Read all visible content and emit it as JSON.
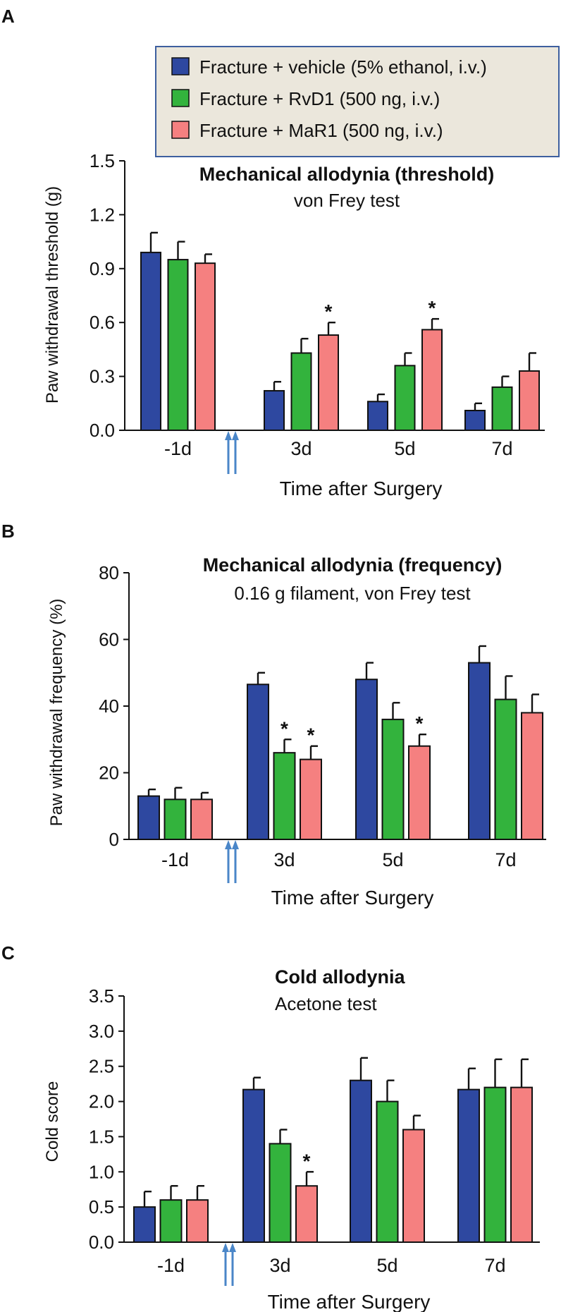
{
  "legend": {
    "items": [
      {
        "label": "Fracture + vehicle (5% ethanol, i.v.)",
        "color": "#2e48a0"
      },
      {
        "label": "Fracture + RvD1 (500 ng, i.v.)",
        "color": "#33b33d"
      },
      {
        "label": "Fracture + MaR1 (500 ng, i.v.)",
        "color": "#f58080"
      }
    ],
    "background": "#ebe7dc",
    "border_color": "#3d5f9f"
  },
  "arrow_color": "#4a86c8",
  "chart_data": [
    {
      "panel": "A",
      "type": "bar",
      "title": "Mechanical allodynia (threshold)",
      "subtitle": "von Frey test",
      "xlabel": "Time after Surgery",
      "ylabel": "Paw withdrawal threshold (g)",
      "ylim": [
        0,
        1.5
      ],
      "yticks": [
        "0.0",
        "0.3",
        "0.6",
        "0.9",
        "1.2",
        "1.5"
      ],
      "categories": [
        "-1d",
        "3d",
        "5d",
        "7d"
      ],
      "series": [
        {
          "name": "Fracture + vehicle (5% ethanol, i.v.)",
          "values": [
            0.99,
            0.22,
            0.16,
            0.11
          ],
          "errors": [
            0.11,
            0.05,
            0.04,
            0.04
          ],
          "stars": [
            false,
            false,
            false,
            false
          ]
        },
        {
          "name": "Fracture + RvD1 (500 ng, i.v.)",
          "values": [
            0.95,
            0.43,
            0.36,
            0.24
          ],
          "errors": [
            0.1,
            0.08,
            0.07,
            0.06
          ],
          "stars": [
            false,
            false,
            false,
            false
          ]
        },
        {
          "name": "Fracture + MaR1 (500 ng, i.v.)",
          "values": [
            0.93,
            0.53,
            0.56,
            0.33
          ],
          "errors": [
            0.05,
            0.07,
            0.06,
            0.1
          ],
          "stars": [
            false,
            true,
            true,
            false
          ]
        }
      ]
    },
    {
      "panel": "B",
      "type": "bar",
      "title": "Mechanical allodynia (frequency)",
      "subtitle": "0.16 g filament, von Frey test",
      "xlabel": "Time after Surgery",
      "ylabel": "Paw withdrawal frequency (%)",
      "ylim": [
        0,
        80
      ],
      "yticks": [
        "0",
        "20",
        "40",
        "60",
        "80"
      ],
      "categories": [
        "-1d",
        "3d",
        "5d",
        "7d"
      ],
      "series": [
        {
          "name": "Fracture + vehicle (5% ethanol, i.v.)",
          "values": [
            13,
            46.5,
            48,
            53
          ],
          "errors": [
            2,
            3.5,
            5,
            5
          ],
          "stars": [
            false,
            false,
            false,
            false
          ]
        },
        {
          "name": "Fracture + RvD1 (500 ng, i.v.)",
          "values": [
            12,
            26,
            36,
            42
          ],
          "errors": [
            3.5,
            4,
            5,
            7
          ],
          "stars": [
            false,
            true,
            false,
            false
          ]
        },
        {
          "name": "Fracture + MaR1 (500 ng, i.v.)",
          "values": [
            12,
            24,
            28,
            38
          ],
          "errors": [
            2,
            4,
            3.5,
            5.5
          ],
          "stars": [
            false,
            true,
            true,
            false
          ]
        }
      ]
    },
    {
      "panel": "C",
      "type": "bar",
      "title": "Cold allodynia",
      "subtitle": "Acetone test",
      "xlabel": "Time after Surgery",
      "ylabel": "Cold score",
      "ylim": [
        0,
        3.5
      ],
      "yticks": [
        "0.0",
        "0.5",
        "1.0",
        "1.5",
        "2.0",
        "2.5",
        "3.0",
        "3.5"
      ],
      "categories": [
        "-1d",
        "3d",
        "5d",
        "7d"
      ],
      "series": [
        {
          "name": "Fracture + vehicle (5% ethanol, i.v.)",
          "values": [
            0.5,
            2.17,
            2.3,
            2.17
          ],
          "errors": [
            0.22,
            0.17,
            0.32,
            0.3
          ],
          "stars": [
            false,
            false,
            false,
            false
          ]
        },
        {
          "name": "Fracture + RvD1 (500 ng, i.v.)",
          "values": [
            0.6,
            1.4,
            2.0,
            2.2
          ],
          "errors": [
            0.2,
            0.2,
            0.3,
            0.4
          ],
          "stars": [
            false,
            false,
            false,
            false
          ]
        },
        {
          "name": "Fracture + MaR1 (500 ng, i.v.)",
          "values": [
            0.6,
            0.8,
            1.6,
            2.2
          ],
          "errors": [
            0.2,
            0.2,
            0.2,
            0.4
          ],
          "stars": [
            false,
            true,
            false,
            false
          ]
        }
      ]
    }
  ]
}
